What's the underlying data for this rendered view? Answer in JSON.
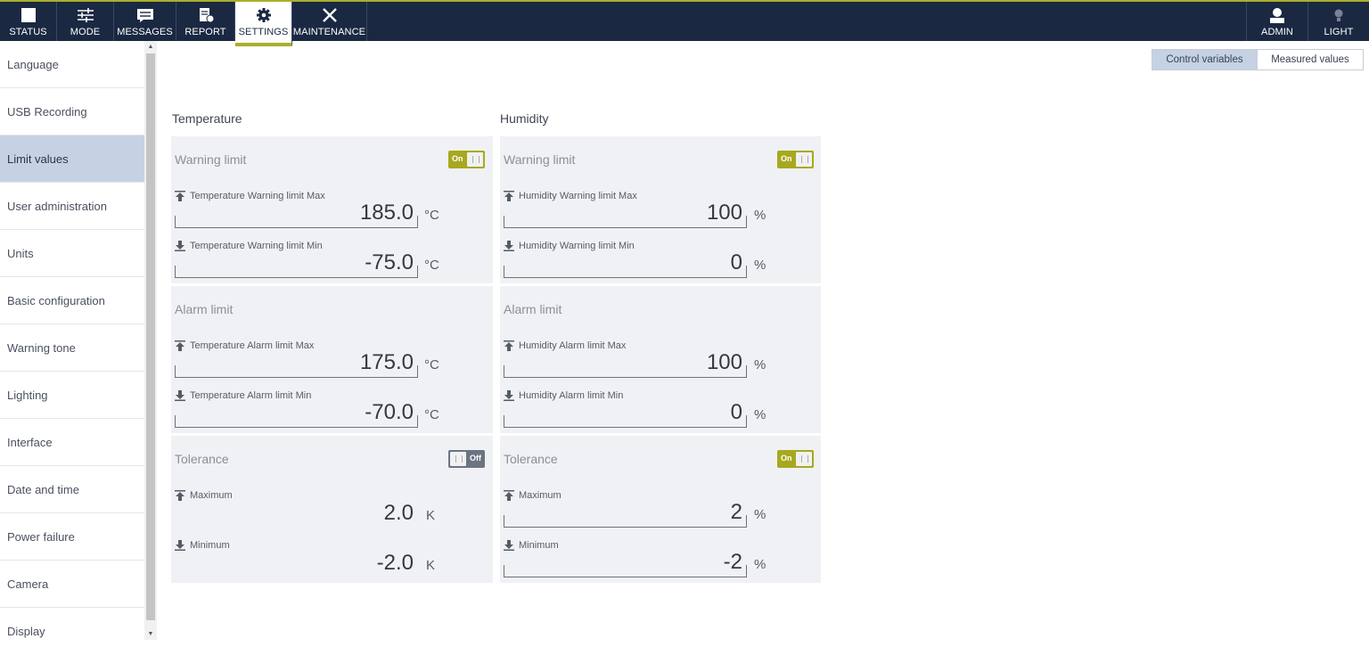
{
  "nav": {
    "items": [
      {
        "label": "STATUS",
        "icon": "status-square-icon"
      },
      {
        "label": "MODE",
        "icon": "sliders-icon"
      },
      {
        "label": "MESSAGES",
        "icon": "message-icon"
      },
      {
        "label": "REPORT",
        "icon": "report-icon"
      },
      {
        "label": "SETTINGS",
        "icon": "gear-icon"
      },
      {
        "label": "MAINTENANCE",
        "icon": "tools-icon"
      }
    ],
    "user": {
      "label": "ADMIN",
      "icon": "user-icon"
    },
    "light": {
      "label": "LIGHT",
      "icon": "bulb-icon"
    },
    "accent": "#a8b02a",
    "background": "#1b2842"
  },
  "sidebar": {
    "items": [
      {
        "label": "Language"
      },
      {
        "label": "USB Recording"
      },
      {
        "label": "Limit values"
      },
      {
        "label": "User administration"
      },
      {
        "label": "Units"
      },
      {
        "label": "Basic configuration"
      },
      {
        "label": "Warning tone"
      },
      {
        "label": "Lighting"
      },
      {
        "label": "Interface"
      },
      {
        "label": "Date and time"
      },
      {
        "label": "Power failure"
      },
      {
        "label": "Camera"
      },
      {
        "label": "Display"
      }
    ],
    "active": "Limit values"
  },
  "segmented": {
    "control": "Control variables",
    "measured": "Measured values",
    "active": "Control variables"
  },
  "temperature": {
    "title": "Temperature",
    "warning": {
      "title": "Warning limit",
      "toggle": "On",
      "max_label": "Temperature Warning limit Max",
      "max_value": "185.0",
      "max_unit": "°C",
      "min_label": "Temperature Warning limit Min",
      "min_value": "-75.0",
      "min_unit": "°C"
    },
    "alarm": {
      "title": "Alarm limit",
      "max_label": "Temperature Alarm limit Max",
      "max_value": "175.0",
      "max_unit": "°C",
      "min_label": "Temperature Alarm limit Min",
      "min_value": "-70.0",
      "min_unit": "°C"
    },
    "tolerance": {
      "title": "Tolerance",
      "toggle": "Off",
      "max_label": "Maximum",
      "max_value": "2.0",
      "max_unit": "K",
      "min_label": "Minimum",
      "min_value": "-2.0",
      "min_unit": "K"
    }
  },
  "humidity": {
    "title": "Humidity",
    "warning": {
      "title": "Warning limit",
      "toggle": "On",
      "max_label": "Humidity Warning limit Max",
      "max_value": "100",
      "max_unit": "%",
      "min_label": "Humidity Warning limit Min",
      "min_value": "0",
      "min_unit": "%"
    },
    "alarm": {
      "title": "Alarm limit",
      "max_label": "Humidity Alarm limit Max",
      "max_value": "100",
      "max_unit": "%",
      "min_label": "Humidity Alarm limit Min",
      "min_value": "0",
      "min_unit": "%"
    },
    "tolerance": {
      "title": "Tolerance",
      "toggle": "On",
      "max_label": "Maximum",
      "max_value": "2",
      "max_unit": "%",
      "min_label": "Minimum",
      "min_value": "-2",
      "min_unit": "%"
    }
  }
}
